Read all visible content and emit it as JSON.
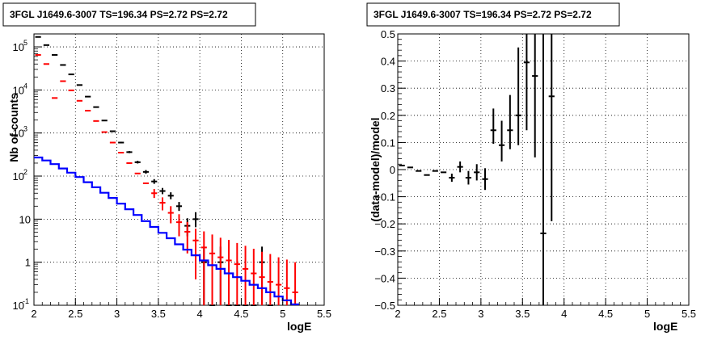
{
  "chart_data": [
    {
      "type": "line",
      "title": "3FGL J1649.6-3007 TS=196.34 PS=2.72 PS=2.72",
      "xlabel": "logE",
      "ylabel": "Nb of counts",
      "xlim": [
        2,
        5.5
      ],
      "ylim": [
        0.1,
        200000
      ],
      "yscale": "log",
      "grid": true,
      "xticks": [
        "2",
        "2.5",
        "3",
        "3.5",
        "4",
        "4.5",
        "5",
        "5.5"
      ],
      "yticks": [
        {
          "value": 0.1,
          "label": "10",
          "exp": "-1"
        },
        {
          "value": 1,
          "label": "1",
          "exp": ""
        },
        {
          "value": 10,
          "label": "10",
          "exp": ""
        },
        {
          "value": 100,
          "label": "10",
          "exp": "2"
        },
        {
          "value": 1000,
          "label": "10",
          "exp": "3"
        },
        {
          "value": 10000,
          "label": "10",
          "exp": "4"
        },
        {
          "value": 100000,
          "label": "10",
          "exp": "5"
        }
      ],
      "series": [
        {
          "kind": "data_points",
          "color": "#000000",
          "x": [
            2.05,
            2.15,
            2.25,
            2.35,
            2.45,
            2.55,
            2.65,
            2.75,
            2.85,
            2.95,
            3.05,
            3.15,
            3.25,
            3.35,
            3.45,
            3.55,
            3.65,
            3.75,
            3.85,
            3.95,
            4.05,
            4.15,
            4.25,
            4.35,
            4.45,
            4.55,
            4.65,
            4.75,
            4.85
          ],
          "y": [
            170000,
            110000,
            65000,
            38000,
            23000,
            13000,
            7000,
            4000,
            1950,
            1100,
            600,
            360,
            210,
            125,
            75,
            45,
            35,
            20,
            7,
            10,
            1,
            0.1,
            1,
            0.1,
            0.1,
            0.1,
            0.1,
            1,
            0.1
          ],
          "yerr_low": [
            0,
            0,
            0,
            0,
            0,
            0,
            0,
            0,
            40,
            30,
            25,
            19,
            14,
            11,
            9,
            7,
            6,
            4.5,
            3,
            3.5,
            0.9,
            0,
            0.9,
            0,
            0,
            0,
            0,
            0.9,
            0
          ],
          "yerr_high": [
            0,
            0,
            0,
            0,
            0,
            0,
            0,
            0,
            50,
            35,
            28,
            22,
            16,
            13,
            10,
            8,
            7,
            5,
            3.5,
            4.5,
            1.3,
            0,
            1.3,
            0,
            0,
            0,
            0,
            1.3,
            0
          ]
        },
        {
          "kind": "model_points",
          "color": "#ff0000",
          "x": [
            2.05,
            2.15,
            2.25,
            2.35,
            2.45,
            2.55,
            2.65,
            2.75,
            2.85,
            2.95,
            3.05,
            3.15,
            3.25,
            3.35,
            3.45,
            3.55,
            3.65,
            3.75,
            3.85,
            3.95,
            4.05,
            4.15,
            4.25,
            4.35,
            4.45,
            4.55,
            4.65,
            4.75,
            4.85,
            4.95,
            5.05,
            5.15
          ],
          "y": [
            65000,
            40000,
            6500,
            16000,
            9800,
            5600,
            3300,
            1900,
            1050,
            600,
            350,
            200,
            115,
            68,
            40,
            24,
            14,
            8.5,
            5.1,
            3.2,
            2.2,
            1.6,
            1.3,
            1.1,
            0.9,
            0.7,
            0.55,
            0.45,
            0.35,
            0.3,
            0.25,
            0.2
          ],
          "yerr_low": [
            0,
            0,
            0,
            0,
            0,
            0,
            0,
            0,
            0,
            0,
            0,
            0,
            0,
            0,
            9,
            8,
            6,
            4.5,
            3.5,
            2.8,
            2.1,
            1.5,
            1.2,
            1.0,
            0.85,
            0.67,
            0.52,
            0.43,
            0.33,
            0.27,
            0.23,
            0.19
          ],
          "yerr_high": [
            0,
            0,
            0,
            0,
            0,
            0,
            0,
            0,
            0,
            0,
            0,
            0,
            0,
            0,
            10,
            8,
            6,
            4.5,
            3.5,
            2.8,
            3,
            2.8,
            2.4,
            2.2,
            1.9,
            1.7,
            1.5,
            1.3,
            1.2,
            1.0,
            0.9,
            0.8
          ]
        },
        {
          "kind": "step_line",
          "color": "#0000ff",
          "edges": [
            2.0,
            2.1,
            2.2,
            2.3,
            2.4,
            2.5,
            2.6,
            2.7,
            2.8,
            2.9,
            3.0,
            3.1,
            3.2,
            3.3,
            3.4,
            3.5,
            3.6,
            3.7,
            3.8,
            3.9,
            4.0,
            4.1,
            4.2,
            4.3,
            4.4,
            4.5,
            4.6,
            4.7,
            4.8,
            4.9,
            5.0,
            5.1,
            5.2
          ],
          "values": [
            270,
            230,
            190,
            150,
            120,
            95,
            72,
            55,
            41,
            31,
            23,
            17,
            12.5,
            9,
            6.6,
            4.8,
            3.6,
            2.6,
            1.95,
            1.45,
            1.1,
            0.85,
            0.7,
            0.55,
            0.45,
            0.37,
            0.3,
            0.25,
            0.2,
            0.16,
            0.13,
            0.105
          ]
        }
      ]
    },
    {
      "type": "scatter",
      "title": "3FGL J1649.6-3007 TS=196.34 PS=2.72 PS=2.72",
      "xlabel": "logE",
      "ylabel": "(data-model)/model",
      "xlim": [
        2,
        5.5
      ],
      "ylim": [
        -0.5,
        0.5
      ],
      "grid": true,
      "xticks": [
        "2",
        "2.5",
        "3",
        "3.5",
        "4",
        "4.5",
        "5",
        "5.5"
      ],
      "yticks": [
        "-0.5",
        "-0.4",
        "-0.3",
        "-0.2",
        "-0.1",
        "0",
        "0.1",
        "0.2",
        "0.3",
        "0.4",
        "0.5"
      ],
      "series": [
        {
          "kind": "residuals",
          "color": "#000000",
          "x": [
            2.05,
            2.15,
            2.25,
            2.35,
            2.45,
            2.55,
            2.65,
            2.75,
            2.85,
            2.95,
            3.05,
            3.15,
            3.25,
            3.35,
            3.45,
            3.55,
            3.65,
            3.75,
            3.85
          ],
          "y": [
            0.015,
            0.008,
            -0.005,
            -0.02,
            -0.005,
            -0.01,
            -0.03,
            0.01,
            -0.03,
            -0.01,
            -0.035,
            0.145,
            0.09,
            0.145,
            0.2,
            0.395,
            0.345,
            -0.235,
            0.27
          ],
          "yerr_low": [
            0,
            0,
            0,
            0,
            0,
            0,
            0.015,
            0.02,
            0.025,
            0.03,
            0.04,
            0.05,
            0.06,
            0.07,
            0.11,
            0.25,
            0.3,
            0.4,
            0.46
          ],
          "yerr_high": [
            0,
            0,
            0,
            0,
            0,
            0,
            0.015,
            0.02,
            0.025,
            0.03,
            0.04,
            0.08,
            0.09,
            0.13,
            0.25,
            0.25,
            0.3,
            0.9,
            0.4
          ]
        }
      ]
    }
  ]
}
